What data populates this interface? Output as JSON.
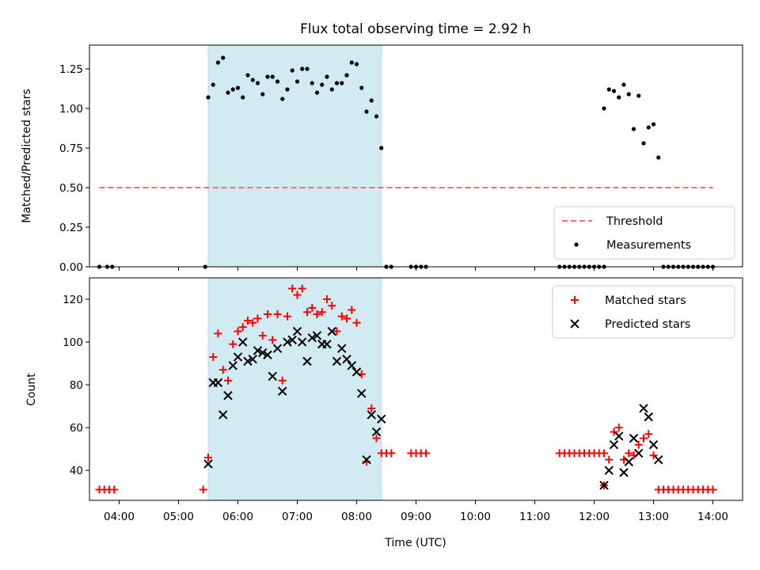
{
  "chart_data": [
    {
      "type": "scatter",
      "title": "Flux total observing time = 2.92 h",
      "ylabel": "Matched/Predicted stars",
      "xlabel": "",
      "xlim": [
        "03:30",
        "14:30"
      ],
      "ylim": [
        0,
        1.4
      ],
      "yticks": [
        "0.00",
        "0.25",
        "0.50",
        "0.75",
        "1.00",
        "1.25"
      ],
      "xticks": [
        "04:00",
        "05:00",
        "06:00",
        "07:00",
        "08:00",
        "09:00",
        "10:00",
        "11:00",
        "12:00",
        "13:00",
        "14:00"
      ],
      "shaded_interval": [
        "05:30",
        "08:25"
      ],
      "shaded_color": "#add8e6",
      "legend": {
        "placement": "lower right",
        "entries": [
          "Threshold",
          "Measurements"
        ]
      },
      "series": [
        {
          "name": "Threshold",
          "style": "dashed-line",
          "color": "#ff6b6b",
          "x": [
            "03:40",
            "14:00"
          ],
          "y": [
            0.5,
            0.5
          ]
        },
        {
          "name": "Measurements",
          "style": "dot",
          "color": "#000000",
          "points": [
            [
              "03:40",
              0
            ],
            [
              "03:48",
              0
            ],
            [
              "03:53",
              0
            ],
            [
              "05:27",
              0
            ],
            [
              "05:30",
              1.07
            ],
            [
              "05:35",
              1.15
            ],
            [
              "05:40",
              1.29
            ],
            [
              "05:45",
              1.32
            ],
            [
              "05:50",
              1.1
            ],
            [
              "05:55",
              1.12
            ],
            [
              "06:00",
              1.13
            ],
            [
              "06:05",
              1.07
            ],
            [
              "06:10",
              1.21
            ],
            [
              "06:15",
              1.18
            ],
            [
              "06:20",
              1.16
            ],
            [
              "06:25",
              1.09
            ],
            [
              "06:30",
              1.2
            ],
            [
              "06:35",
              1.2
            ],
            [
              "06:40",
              1.17
            ],
            [
              "06:45",
              1.06
            ],
            [
              "06:50",
              1.12
            ],
            [
              "06:55",
              1.24
            ],
            [
              "07:00",
              1.17
            ],
            [
              "07:05",
              1.25
            ],
            [
              "07:10",
              1.25
            ],
            [
              "07:15",
              1.16
            ],
            [
              "07:20",
              1.1
            ],
            [
              "07:25",
              1.15
            ],
            [
              "07:30",
              1.2
            ],
            [
              "07:35",
              1.12
            ],
            [
              "07:40",
              1.16
            ],
            [
              "07:45",
              1.16
            ],
            [
              "07:50",
              1.21
            ],
            [
              "07:55",
              1.29
            ],
            [
              "08:00",
              1.28
            ],
            [
              "08:05",
              1.13
            ],
            [
              "08:10",
              0.98
            ],
            [
              "08:15",
              1.05
            ],
            [
              "08:20",
              0.95
            ],
            [
              "08:25",
              0.75
            ],
            [
              "08:30",
              0
            ],
            [
              "08:35",
              0
            ],
            [
              "08:55",
              0
            ],
            [
              "09:00",
              0
            ],
            [
              "09:05",
              0
            ],
            [
              "09:10",
              0
            ],
            [
              "11:25",
              0
            ],
            [
              "11:30",
              0
            ],
            [
              "11:35",
              0
            ],
            [
              "11:40",
              0
            ],
            [
              "11:45",
              0
            ],
            [
              "11:50",
              0
            ],
            [
              "11:55",
              0
            ],
            [
              "12:00",
              0
            ],
            [
              "12:05",
              0
            ],
            [
              "12:10",
              0
            ],
            [
              "12:10",
              1.0
            ],
            [
              "12:15",
              1.12
            ],
            [
              "12:20",
              1.11
            ],
            [
              "12:25",
              1.07
            ],
            [
              "12:30",
              1.15
            ],
            [
              "12:35",
              1.09
            ],
            [
              "12:40",
              0.87
            ],
            [
              "12:45",
              1.08
            ],
            [
              "12:50",
              0.78
            ],
            [
              "12:55",
              0.88
            ],
            [
              "13:00",
              0.9
            ],
            [
              "13:05",
              0.69
            ],
            [
              "13:10",
              0
            ],
            [
              "13:15",
              0
            ],
            [
              "13:20",
              0
            ],
            [
              "13:25",
              0
            ],
            [
              "13:30",
              0
            ],
            [
              "13:35",
              0
            ],
            [
              "13:40",
              0
            ],
            [
              "13:45",
              0
            ],
            [
              "13:50",
              0
            ],
            [
              "13:55",
              0
            ],
            [
              "14:00",
              0
            ]
          ]
        }
      ]
    },
    {
      "type": "scatter",
      "title": "",
      "ylabel": "Count",
      "xlabel": "Time (UTC)",
      "xlim": [
        "03:30",
        "14:30"
      ],
      "ylim": [
        26,
        130
      ],
      "yticks": [
        "40",
        "60",
        "80",
        "100",
        "120"
      ],
      "xticks": [
        "04:00",
        "05:00",
        "06:00",
        "07:00",
        "08:00",
        "09:00",
        "10:00",
        "11:00",
        "12:00",
        "13:00",
        "14:00"
      ],
      "shaded_interval": [
        "05:30",
        "08:25"
      ],
      "shaded_color": "#add8e6",
      "legend": {
        "placement": "upper right",
        "entries": [
          "Matched stars",
          "Predicted stars"
        ]
      },
      "series": [
        {
          "name": "Matched stars",
          "marker": "plus",
          "color": "#ff0000",
          "points": [
            [
              "03:40",
              31
            ],
            [
              "03:45",
              31
            ],
            [
              "03:50",
              31
            ],
            [
              "03:55",
              31
            ],
            [
              "05:25",
              31
            ],
            [
              "05:30",
              46
            ],
            [
              "05:35",
              93
            ],
            [
              "05:40",
              104
            ],
            [
              "05:45",
              87
            ],
            [
              "05:50",
              82
            ],
            [
              "05:55",
              99
            ],
            [
              "06:00",
              105
            ],
            [
              "06:05",
              107
            ],
            [
              "06:10",
              110
            ],
            [
              "06:15",
              109
            ],
            [
              "06:20",
              111
            ],
            [
              "06:25",
              103
            ],
            [
              "06:30",
              113
            ],
            [
              "06:35",
              101
            ],
            [
              "06:40",
              113
            ],
            [
              "06:45",
              82
            ],
            [
              "06:50",
              112
            ],
            [
              "06:55",
              125
            ],
            [
              "07:00",
              122
            ],
            [
              "07:05",
              125
            ],
            [
              "07:10",
              114
            ],
            [
              "07:15",
              116
            ],
            [
              "07:20",
              113
            ],
            [
              "07:25",
              114
            ],
            [
              "07:30",
              120
            ],
            [
              "07:35",
              117
            ],
            [
              "07:40",
              105
            ],
            [
              "07:45",
              112
            ],
            [
              "07:50",
              111
            ],
            [
              "07:55",
              115
            ],
            [
              "08:00",
              109
            ],
            [
              "08:05",
              85
            ],
            [
              "08:10",
              44
            ],
            [
              "08:15",
              69
            ],
            [
              "08:20",
              55
            ],
            [
              "08:25",
              48
            ],
            [
              "08:30",
              48
            ],
            [
              "08:35",
              48
            ],
            [
              "08:55",
              48
            ],
            [
              "09:00",
              48
            ],
            [
              "09:05",
              48
            ],
            [
              "09:10",
              48
            ],
            [
              "11:25",
              48
            ],
            [
              "11:30",
              48
            ],
            [
              "11:35",
              48
            ],
            [
              "11:40",
              48
            ],
            [
              "11:45",
              48
            ],
            [
              "11:50",
              48
            ],
            [
              "11:55",
              48
            ],
            [
              "12:00",
              48
            ],
            [
              "12:05",
              48
            ],
            [
              "12:10",
              48
            ],
            [
              "12:10",
              33
            ],
            [
              "12:15",
              45
            ],
            [
              "12:20",
              58
            ],
            [
              "12:25",
              60
            ],
            [
              "12:30",
              45
            ],
            [
              "12:35",
              48
            ],
            [
              "12:40",
              47
            ],
            [
              "12:45",
              52
            ],
            [
              "12:50",
              55
            ],
            [
              "12:55",
              57
            ],
            [
              "13:00",
              47
            ],
            [
              "13:05",
              31
            ],
            [
              "13:10",
              31
            ],
            [
              "13:15",
              31
            ],
            [
              "13:20",
              31
            ],
            [
              "13:25",
              31
            ],
            [
              "13:30",
              31
            ],
            [
              "13:35",
              31
            ],
            [
              "13:40",
              31
            ],
            [
              "13:45",
              31
            ],
            [
              "13:50",
              31
            ],
            [
              "13:55",
              31
            ],
            [
              "14:00",
              31
            ]
          ]
        },
        {
          "name": "Predicted stars",
          "marker": "x",
          "color": "#000000",
          "points": [
            [
              "05:30",
              43
            ],
            [
              "05:35",
              81
            ],
            [
              "05:40",
              81
            ],
            [
              "05:45",
              66
            ],
            [
              "05:50",
              75
            ],
            [
              "05:55",
              89
            ],
            [
              "06:00",
              93
            ],
            [
              "06:05",
              100
            ],
            [
              "06:10",
              91
            ],
            [
              "06:15",
              92
            ],
            [
              "06:20",
              96
            ],
            [
              "06:25",
              95
            ],
            [
              "06:30",
              94
            ],
            [
              "06:35",
              84
            ],
            [
              "06:40",
              97
            ],
            [
              "06:45",
              77
            ],
            [
              "06:50",
              100
            ],
            [
              "06:55",
              101
            ],
            [
              "07:00",
              105
            ],
            [
              "07:05",
              100
            ],
            [
              "07:10",
              91
            ],
            [
              "07:15",
              102
            ],
            [
              "07:20",
              103
            ],
            [
              "07:25",
              99
            ],
            [
              "07:30",
              99
            ],
            [
              "07:35",
              105
            ],
            [
              "07:40",
              91
            ],
            [
              "07:45",
              97
            ],
            [
              "07:50",
              92
            ],
            [
              "07:55",
              89
            ],
            [
              "08:00",
              86
            ],
            [
              "08:05",
              76
            ],
            [
              "08:10",
              45
            ],
            [
              "08:15",
              66
            ],
            [
              "08:20",
              58
            ],
            [
              "08:25",
              64
            ],
            [
              "12:10",
              33
            ],
            [
              "12:15",
              40
            ],
            [
              "12:20",
              52
            ],
            [
              "12:25",
              56
            ],
            [
              "12:30",
              39
            ],
            [
              "12:35",
              44
            ],
            [
              "12:40",
              55
            ],
            [
              "12:45",
              48
            ],
            [
              "12:50",
              69
            ],
            [
              "12:55",
              65
            ],
            [
              "13:00",
              52
            ],
            [
              "13:05",
              45
            ]
          ]
        }
      ]
    }
  ]
}
